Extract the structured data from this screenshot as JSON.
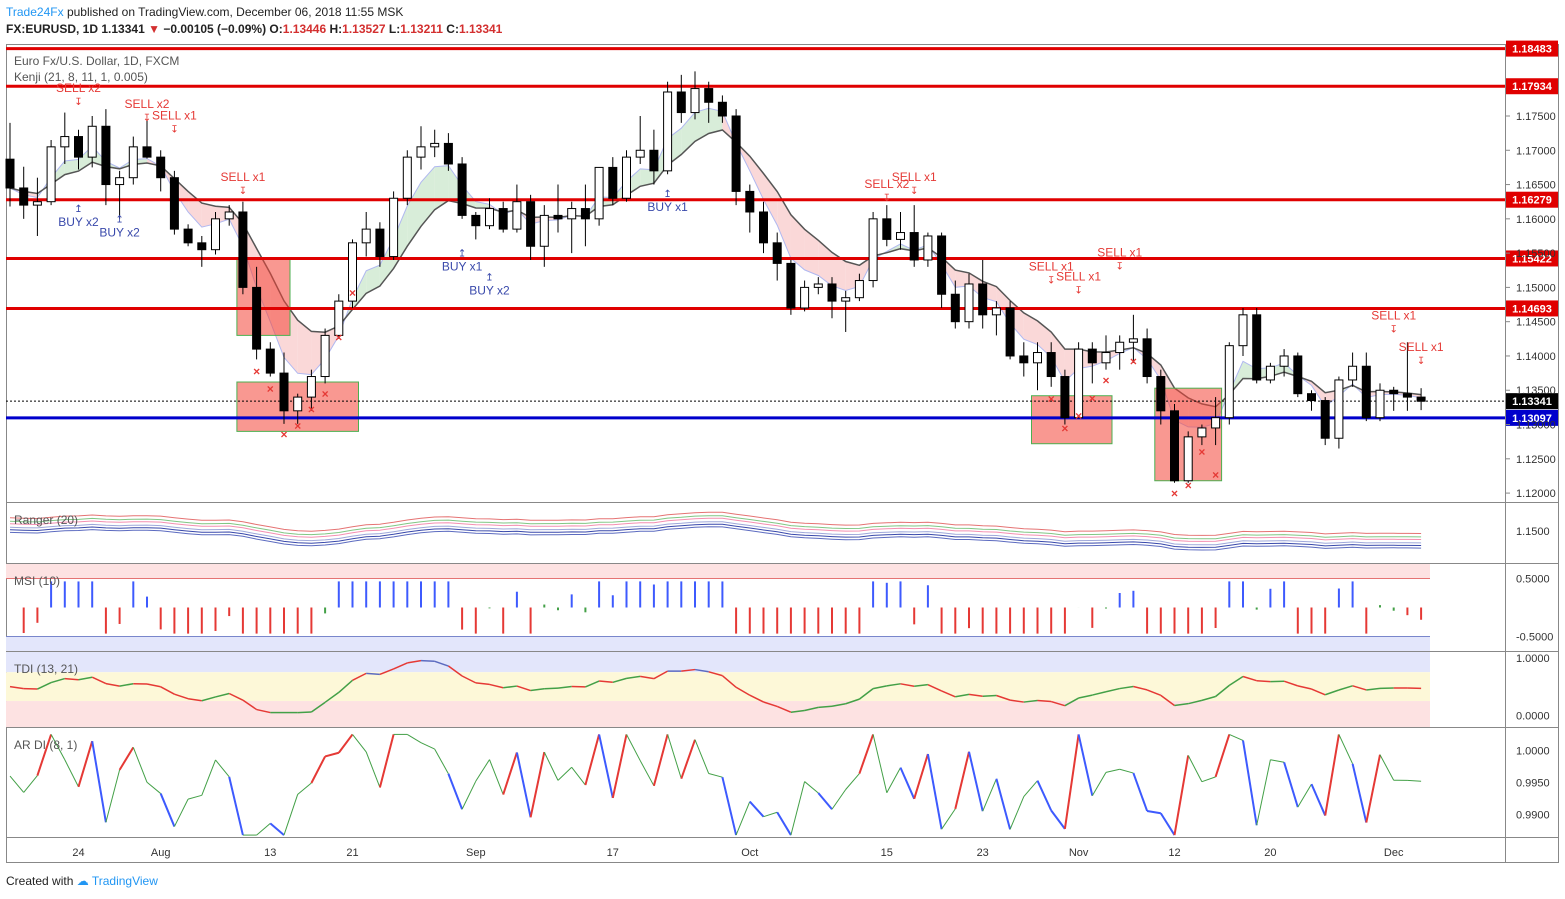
{
  "header": {
    "brand": "Trade24Fx",
    "published": "published on TradingView.com, December 06, 2018 11:55 MSK",
    "symbol": "FX:EURUSD, 1D",
    "price": "1.13341",
    "change": "−0.00105 (−0.09%)",
    "o_label": "O:",
    "o": "1.13446",
    "h_label": "H:",
    "h": "1.13527",
    "l_label": "L:",
    "l": "1.13211",
    "c_label": "C:",
    "c": "1.13341"
  },
  "footer": {
    "created_with": "Created with",
    "brand": "TradingView"
  },
  "colors": {
    "up": "#ffffff",
    "down": "#000000",
    "resistance": "#e00000",
    "support": "#0000cc",
    "sell": "#e53935",
    "buy": "#3949ab"
  },
  "chart_data": [
    {
      "type": "candlestick",
      "title": "Euro Fx/U.S. Dollar, 1D, FXCM",
      "subtitle": "Kenji (21, 8, 11, 1, 0.005)",
      "x_tick_labels": [
        "24",
        "Aug",
        "13",
        "21",
        "Sep",
        "17",
        "Oct",
        "15",
        "23",
        "Nov",
        "12",
        "20",
        "Dec"
      ],
      "y_ticks": [
        1.12,
        1.125,
        1.13,
        1.135,
        1.14,
        1.145,
        1.15,
        1.155,
        1.16,
        1.165,
        1.17,
        1.175
      ],
      "y_tick_labels": [
        "1.12000",
        "1.12500",
        "1.13000",
        "1.13500",
        "1.14000",
        "1.14500",
        "1.15000",
        "1.15500",
        "1.16000",
        "1.16500",
        "1.17000",
        "1.17500"
      ],
      "ylim": [
        1.1187,
        1.1855
      ],
      "levels": [
        {
          "value": 1.18483,
          "label": "1.18483",
          "color": "#e00000"
        },
        {
          "value": 1.17934,
          "label": "1.17934",
          "color": "#e00000"
        },
        {
          "value": 1.16279,
          "label": "1.16279",
          "color": "#e00000"
        },
        {
          "value": 1.15422,
          "label": "1.15422",
          "color": "#e00000"
        },
        {
          "value": 1.14693,
          "label": "1.14693",
          "color": "#e00000"
        },
        {
          "value": 1.13097,
          "label": "1.13097",
          "color": "#0000cc"
        }
      ],
      "last_price": {
        "value": 1.13341,
        "label": "1.13341"
      },
      "candles": [
        [
          1.1687,
          1.174,
          1.1618,
          1.1645
        ],
        [
          1.1645,
          1.1676,
          1.16,
          1.162
        ],
        [
          1.162,
          1.166,
          1.1575,
          1.1625
        ],
        [
          1.1625,
          1.1715,
          1.162,
          1.1705
        ],
        [
          1.1705,
          1.1755,
          1.168,
          1.172
        ],
        [
          1.172,
          1.173,
          1.1672,
          1.169
        ],
        [
          1.169,
          1.175,
          1.1675,
          1.1735
        ],
        [
          1.1735,
          1.176,
          1.162,
          1.165
        ],
        [
          1.165,
          1.167,
          1.16,
          1.166
        ],
        [
          1.166,
          1.172,
          1.165,
          1.1705
        ],
        [
          1.1705,
          1.1745,
          1.1688,
          1.169
        ],
        [
          1.169,
          1.17,
          1.164,
          1.166
        ],
        [
          1.166,
          1.167,
          1.1577,
          1.1585
        ],
        [
          1.1585,
          1.1592,
          1.156,
          1.1565
        ],
        [
          1.1565,
          1.1575,
          1.153,
          1.1555
        ],
        [
          1.1555,
          1.161,
          1.1548,
          1.16
        ],
        [
          1.16,
          1.162,
          1.159,
          1.161
        ],
        [
          1.161,
          1.1625,
          1.149,
          1.15
        ],
        [
          1.15,
          1.153,
          1.1395,
          1.141
        ],
        [
          1.141,
          1.142,
          1.137,
          1.1375
        ],
        [
          1.1375,
          1.1405,
          1.1301,
          1.132
        ],
        [
          1.132,
          1.1345,
          1.1301,
          1.134
        ],
        [
          1.134,
          1.138,
          1.132,
          1.137
        ],
        [
          1.137,
          1.144,
          1.136,
          1.143
        ],
        [
          1.143,
          1.149,
          1.1425,
          1.148
        ],
        [
          1.148,
          1.157,
          1.147,
          1.1565
        ],
        [
          1.1565,
          1.161,
          1.1545,
          1.1585
        ],
        [
          1.1585,
          1.1595,
          1.153,
          1.1545
        ],
        [
          1.1545,
          1.164,
          1.154,
          1.163
        ],
        [
          1.163,
          1.17,
          1.162,
          1.169
        ],
        [
          1.169,
          1.1735,
          1.1672,
          1.1705
        ],
        [
          1.1705,
          1.173,
          1.169,
          1.171
        ],
        [
          1.171,
          1.1725,
          1.167,
          1.168
        ],
        [
          1.168,
          1.169,
          1.16,
          1.1605
        ],
        [
          1.1605,
          1.161,
          1.157,
          1.159
        ],
        [
          1.159,
          1.163,
          1.1585,
          1.1615
        ],
        [
          1.1615,
          1.1625,
          1.158,
          1.1585
        ],
        [
          1.1585,
          1.165,
          1.158,
          1.1625
        ],
        [
          1.1625,
          1.1635,
          1.154,
          1.156
        ],
        [
          1.156,
          1.162,
          1.153,
          1.1605
        ],
        [
          1.1605,
          1.165,
          1.158,
          1.16
        ],
        [
          1.16,
          1.1625,
          1.155,
          1.1615
        ],
        [
          1.1615,
          1.165,
          1.156,
          1.16
        ],
        [
          1.16,
          1.1675,
          1.159,
          1.1675
        ],
        [
          1.1675,
          1.169,
          1.162,
          1.163
        ],
        [
          1.163,
          1.17,
          1.1625,
          1.169
        ],
        [
          1.169,
          1.175,
          1.168,
          1.17
        ],
        [
          1.17,
          1.173,
          1.165,
          1.167
        ],
        [
          1.167,
          1.18,
          1.1665,
          1.1785
        ],
        [
          1.1785,
          1.181,
          1.174,
          1.1755
        ],
        [
          1.1755,
          1.1815,
          1.1745,
          1.179
        ],
        [
          1.179,
          1.18,
          1.174,
          1.177
        ],
        [
          1.177,
          1.178,
          1.174,
          1.175
        ],
        [
          1.175,
          1.176,
          1.162,
          1.164
        ],
        [
          1.164,
          1.165,
          1.158,
          1.161
        ],
        [
          1.161,
          1.1625,
          1.155,
          1.1565
        ],
        [
          1.1565,
          1.158,
          1.151,
          1.1535
        ],
        [
          1.1535,
          1.154,
          1.146,
          1.147
        ],
        [
          1.147,
          1.151,
          1.1465,
          1.15
        ],
        [
          1.15,
          1.1515,
          1.149,
          1.1505
        ],
        [
          1.1505,
          1.1515,
          1.1455,
          1.148
        ],
        [
          1.148,
          1.1495,
          1.1435,
          1.1485
        ],
        [
          1.1485,
          1.152,
          1.148,
          1.151
        ],
        [
          1.151,
          1.161,
          1.15,
          1.16
        ],
        [
          1.16,
          1.162,
          1.156,
          1.157
        ],
        [
          1.157,
          1.161,
          1.1555,
          1.158
        ],
        [
          1.158,
          1.162,
          1.153,
          1.154
        ],
        [
          1.154,
          1.158,
          1.153,
          1.1575
        ],
        [
          1.1575,
          1.158,
          1.147,
          1.149
        ],
        [
          1.149,
          1.151,
          1.144,
          1.145
        ],
        [
          1.145,
          1.152,
          1.144,
          1.1505
        ],
        [
          1.1505,
          1.154,
          1.144,
          1.146
        ],
        [
          1.146,
          1.148,
          1.143,
          1.147
        ],
        [
          1.147,
          1.148,
          1.1395,
          1.14
        ],
        [
          1.14,
          1.142,
          1.137,
          1.139
        ],
        [
          1.139,
          1.142,
          1.135,
          1.1405
        ],
        [
          1.1405,
          1.142,
          1.1355,
          1.137
        ],
        [
          1.137,
          1.138,
          1.13,
          1.131
        ],
        [
          1.131,
          1.142,
          1.131,
          1.141
        ],
        [
          1.141,
          1.142,
          1.136,
          1.139
        ],
        [
          1.139,
          1.143,
          1.138,
          1.1405
        ],
        [
          1.1405,
          1.143,
          1.138,
          1.142
        ],
        [
          1.142,
          1.146,
          1.139,
          1.1425
        ],
        [
          1.1425,
          1.144,
          1.136,
          1.137
        ],
        [
          1.137,
          1.138,
          1.13,
          1.132
        ],
        [
          1.132,
          1.133,
          1.1215,
          1.1218
        ],
        [
          1.1218,
          1.129,
          1.1215,
          1.1282
        ],
        [
          1.1282,
          1.13,
          1.127,
          1.1295
        ],
        [
          1.1295,
          1.134,
          1.127,
          1.131
        ],
        [
          1.131,
          1.142,
          1.13,
          1.1415
        ],
        [
          1.1415,
          1.147,
          1.14,
          1.146
        ],
        [
          1.146,
          1.147,
          1.136,
          1.1365
        ],
        [
          1.1365,
          1.139,
          1.136,
          1.1385
        ],
        [
          1.1385,
          1.141,
          1.137,
          1.14
        ],
        [
          1.14,
          1.1405,
          1.134,
          1.1345
        ],
        [
          1.1345,
          1.135,
          1.132,
          1.1335
        ],
        [
          1.1335,
          1.134,
          1.127,
          1.128
        ],
        [
          1.128,
          1.137,
          1.1265,
          1.1365
        ],
        [
          1.1365,
          1.1405,
          1.1355,
          1.1385
        ],
        [
          1.1385,
          1.1405,
          1.1305,
          1.131
        ],
        [
          1.131,
          1.136,
          1.1305,
          1.135
        ],
        [
          1.135,
          1.1355,
          1.132,
          1.1345
        ],
        [
          1.1345,
          1.142,
          1.132,
          1.134
        ],
        [
          1.134,
          1.1353,
          1.1321,
          1.1334
        ]
      ],
      "signals_sell": [
        {
          "label": "SELL x2",
          "index": 5,
          "price": 1.1785
        },
        {
          "label": "SELL x2",
          "index": 10,
          "price": 1.1762
        },
        {
          "label": "SELL x1",
          "index": 12,
          "price": 1.1745
        },
        {
          "label": "SELL x1",
          "index": 17,
          "price": 1.1655
        },
        {
          "label": "SELL x2",
          "index": 64,
          "price": 1.1645
        },
        {
          "label": "SELL x1",
          "index": 66,
          "price": 1.1655
        },
        {
          "label": "SELL x1",
          "index": 76,
          "price": 1.1525
        },
        {
          "label": "SELL x1",
          "index": 78,
          "price": 1.151
        },
        {
          "label": "SELL x1",
          "index": 81,
          "price": 1.1545
        },
        {
          "label": "SELL x1",
          "index": 101,
          "price": 1.1453
        },
        {
          "label": "SELL x1",
          "index": 103,
          "price": 1.1407
        }
      ],
      "signals_buy": [
        {
          "label": "BUY x2",
          "index": 5,
          "price": 1.161
        },
        {
          "label": "BUY x2",
          "index": 8,
          "price": 1.1595
        },
        {
          "label": "BUY x1",
          "index": 33,
          "price": 1.1545
        },
        {
          "label": "BUY x2",
          "index": 35,
          "price": 1.151
        },
        {
          "label": "BUY x1",
          "index": 48,
          "price": 1.1632
        }
      ],
      "boxes": [
        {
          "start": 17,
          "end": 20,
          "top": 1.1542,
          "bottom": 1.143,
          "color": "red"
        },
        {
          "start": 17,
          "end": 25,
          "top": 1.1362,
          "bottom": 1.129,
          "color": "red"
        },
        {
          "start": 75,
          "end": 80,
          "top": 1.1342,
          "bottom": 1.1272,
          "color": "red"
        },
        {
          "start": 84,
          "end": 88,
          "top": 1.1353,
          "bottom": 1.1218,
          "color": "red"
        }
      ]
    },
    {
      "type": "line",
      "title": "Ranger (20)",
      "y_ticks": [
        1.15
      ],
      "y_tick_labels": [
        "1.1500"
      ],
      "ylim": [
        1.1425,
        1.1565
      ]
    },
    {
      "type": "bar",
      "title": "MSI (10)",
      "y_ticks": [
        0.5,
        -0.5
      ],
      "y_tick_labels": [
        "0.5000",
        "-0.5000"
      ],
      "ylim": [
        -0.75,
        0.75
      ]
    },
    {
      "type": "line",
      "title": "TDI (13, 21)",
      "y_ticks": [
        1.0,
        0.0
      ],
      "y_tick_labels": [
        "1.0000",
        "0.0000"
      ],
      "ylim": [
        -0.2,
        1.1
      ]
    },
    {
      "type": "line",
      "title": "AR DI (8, 1)",
      "y_ticks": [
        1.0,
        0.995,
        0.99
      ],
      "y_tick_labels": [
        "1.0000",
        "0.9950",
        "0.9900"
      ],
      "ylim": [
        0.9865,
        1.0035
      ]
    }
  ]
}
